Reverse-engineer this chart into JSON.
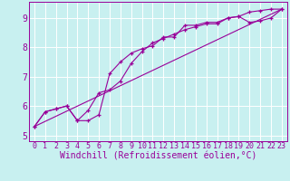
{
  "xlabel": "Windchill (Refroidissement éolien,°C)",
  "bg_color": "#c8f0f0",
  "line_color": "#990099",
  "xlim": [
    -0.5,
    23.5
  ],
  "ylim": [
    4.8,
    9.55
  ],
  "yticks": [
    5,
    6,
    7,
    8,
    9
  ],
  "xticks": [
    0,
    1,
    2,
    3,
    4,
    5,
    6,
    7,
    8,
    9,
    10,
    11,
    12,
    13,
    14,
    15,
    16,
    17,
    18,
    19,
    20,
    21,
    22,
    23
  ],
  "line1_x": [
    0,
    1,
    2,
    3,
    4,
    5,
    6,
    7,
    8,
    9,
    10,
    11,
    12,
    13,
    14,
    15,
    16,
    17,
    18,
    19,
    20,
    21,
    22,
    23
  ],
  "line1_y": [
    5.3,
    5.8,
    5.9,
    6.0,
    5.5,
    5.5,
    5.7,
    7.1,
    7.5,
    7.8,
    7.95,
    8.05,
    8.35,
    8.35,
    8.75,
    8.75,
    8.85,
    8.85,
    9.0,
    9.05,
    8.85,
    8.9,
    9.0,
    9.3
  ],
  "line2_x": [
    0,
    1,
    2,
    3,
    4,
    5,
    6,
    7,
    8,
    9,
    10,
    11,
    12,
    13,
    14,
    15,
    16,
    17,
    18,
    19,
    20,
    21,
    22,
    23
  ],
  "line2_y": [
    5.3,
    5.8,
    5.9,
    6.0,
    5.5,
    5.85,
    6.45,
    6.55,
    6.85,
    7.45,
    7.85,
    8.15,
    8.3,
    8.45,
    8.6,
    8.7,
    8.8,
    8.8,
    9.0,
    9.05,
    9.2,
    9.25,
    9.3,
    9.3
  ],
  "line3_x": [
    0,
    23
  ],
  "line3_y": [
    5.3,
    9.3
  ],
  "font": "monospace",
  "tick_fontsize": 6,
  "label_fontsize": 7
}
